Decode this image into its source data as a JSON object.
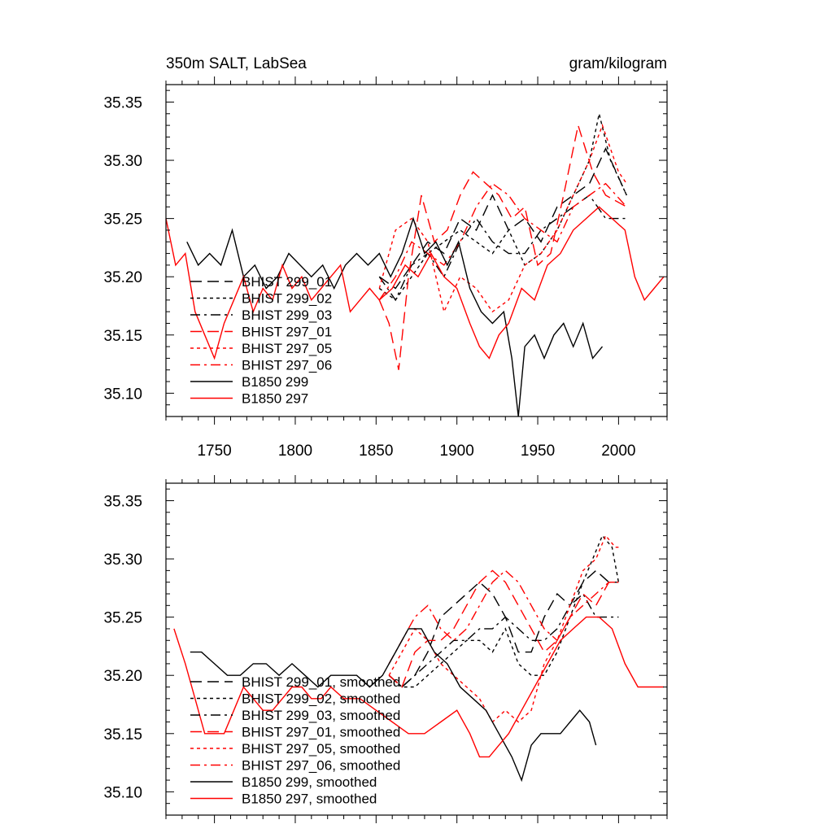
{
  "chart_data": [
    {
      "type": "line",
      "title": "350m SALT, LabSea",
      "units": "gram/kilogram",
      "xlim": [
        1720,
        2030
      ],
      "ylim": [
        35.08,
        35.365
      ],
      "x_ticks": [
        1750,
        1800,
        1850,
        1900,
        1950,
        2000
      ],
      "y_ticks": [
        35.35,
        35.3,
        35.25,
        35.2,
        35.15,
        35.1
      ],
      "y_tick_labels": [
        "35.35",
        "35.30",
        "35.25",
        "35.20",
        "35.15",
        "35.10"
      ],
      "legend_position": "lower-left",
      "series": [
        {
          "name": "BHIST 299_01",
          "color": "#000000",
          "dash": "long",
          "x": [
            1852,
            1862,
            1872,
            1882,
            1892,
            1902,
            1912,
            1922,
            1932,
            1942,
            1952,
            1962,
            1972,
            1982,
            1992,
            2005
          ],
          "y": [
            35.2,
            35.19,
            35.21,
            35.23,
            35.22,
            35.25,
            35.24,
            35.27,
            35.24,
            35.25,
            35.23,
            35.26,
            35.27,
            35.28,
            35.31,
            35.27
          ]
        },
        {
          "name": "BHIST 299_02",
          "color": "#000000",
          "dash": "short",
          "x": [
            1852,
            1862,
            1872,
            1882,
            1892,
            1902,
            1912,
            1922,
            1932,
            1942,
            1952,
            1962,
            1972,
            1982,
            1988,
            1995,
            2005
          ],
          "y": [
            35.19,
            35.18,
            35.2,
            35.22,
            35.23,
            35.24,
            35.23,
            35.22,
            35.24,
            35.21,
            35.22,
            35.24,
            35.27,
            35.3,
            35.34,
            35.3,
            35.27
          ]
        },
        {
          "name": "BHIST 299_03",
          "color": "#000000",
          "dash": "dashdot",
          "x": [
            1852,
            1862,
            1872,
            1882,
            1892,
            1902,
            1912,
            1922,
            1932,
            1942,
            1952,
            1962,
            1972,
            1982,
            1992,
            2005
          ],
          "y": [
            35.2,
            35.18,
            35.21,
            35.22,
            35.2,
            35.23,
            35.25,
            35.23,
            35.22,
            35.22,
            35.24,
            35.25,
            35.26,
            35.27,
            35.25,
            35.25
          ]
        },
        {
          "name": "BHIST 297_01",
          "color": "#ff0000",
          "dash": "long",
          "x": [
            1852,
            1858,
            1864,
            1870,
            1878,
            1886,
            1894,
            1902,
            1910,
            1918,
            1926,
            1934,
            1942,
            1950,
            1958,
            1966,
            1975,
            1984,
            1992,
            2005
          ],
          "y": [
            35.18,
            35.16,
            35.12,
            35.2,
            35.27,
            35.23,
            35.24,
            35.27,
            35.29,
            35.28,
            35.27,
            35.25,
            35.26,
            35.21,
            35.22,
            35.27,
            35.33,
            35.29,
            35.27,
            35.26
          ]
        },
        {
          "name": "BHIST 297_05",
          "color": "#ff0000",
          "dash": "short",
          "x": [
            1852,
            1862,
            1872,
            1882,
            1892,
            1902,
            1912,
            1922,
            1932,
            1942,
            1952,
            1962,
            1972,
            1982,
            1990,
            2000,
            2005
          ],
          "y": [
            35.19,
            35.24,
            35.25,
            35.23,
            35.17,
            35.2,
            35.19,
            35.17,
            35.18,
            35.21,
            35.22,
            35.24,
            35.27,
            35.3,
            35.33,
            35.29,
            35.28
          ]
        },
        {
          "name": "BHIST 297_06",
          "color": "#ff0000",
          "dash": "dashdot",
          "x": [
            1852,
            1862,
            1872,
            1882,
            1892,
            1902,
            1912,
            1922,
            1932,
            1942,
            1952,
            1962,
            1972,
            1982,
            1992,
            2005
          ],
          "y": [
            35.18,
            35.2,
            35.23,
            35.22,
            35.21,
            35.23,
            35.26,
            35.28,
            35.27,
            35.25,
            35.24,
            35.23,
            35.26,
            35.27,
            35.28,
            35.26
          ]
        },
        {
          "name": "B1850 299",
          "color": "#000000",
          "dash": "solid",
          "x": [
            1733,
            1740,
            1747,
            1754,
            1761,
            1768,
            1775,
            1782,
            1789,
            1796,
            1803,
            1810,
            1817,
            1824,
            1831,
            1838,
            1845,
            1852,
            1859,
            1866,
            1873,
            1880,
            1887,
            1894,
            1901,
            1908,
            1915,
            1922,
            1929,
            1934,
            1938,
            1942,
            1948,
            1954,
            1960,
            1966,
            1972,
            1978,
            1984,
            1990
          ],
          "y": [
            35.23,
            35.21,
            35.22,
            35.21,
            35.24,
            35.2,
            35.21,
            35.19,
            35.2,
            35.22,
            35.21,
            35.2,
            35.21,
            35.19,
            35.21,
            35.22,
            35.21,
            35.22,
            35.2,
            35.22,
            35.25,
            35.22,
            35.23,
            35.21,
            35.23,
            35.19,
            35.17,
            35.16,
            35.17,
            35.13,
            35.08,
            35.14,
            35.15,
            35.13,
            35.15,
            35.16,
            35.14,
            35.16,
            35.13,
            35.14
          ]
        },
        {
          "name": "B1850 297",
          "color": "#ff0000",
          "dash": "solid",
          "x": [
            1720,
            1726,
            1732,
            1738,
            1744,
            1750,
            1756,
            1762,
            1768,
            1774,
            1780,
            1786,
            1792,
            1798,
            1804,
            1810,
            1816,
            1822,
            1828,
            1834,
            1840,
            1846,
            1852,
            1860,
            1868,
            1876,
            1884,
            1892,
            1900,
            1908,
            1914,
            1920,
            1926,
            1932,
            1940,
            1948,
            1956,
            1964,
            1972,
            1980,
            1988,
            1996,
            2004,
            2010,
            2016,
            2022,
            2028
          ],
          "y": [
            35.25,
            35.21,
            35.22,
            35.17,
            35.15,
            35.13,
            35.16,
            35.18,
            35.2,
            35.17,
            35.19,
            35.18,
            35.21,
            35.19,
            35.2,
            35.18,
            35.19,
            35.2,
            35.21,
            35.17,
            35.18,
            35.19,
            35.18,
            35.19,
            35.21,
            35.2,
            35.22,
            35.2,
            35.19,
            35.16,
            35.14,
            35.13,
            35.15,
            35.16,
            35.19,
            35.18,
            35.21,
            35.22,
            35.24,
            35.25,
            35.26,
            35.25,
            35.24,
            35.2,
            35.18,
            35.19,
            35.2
          ]
        }
      ]
    },
    {
      "type": "line",
      "xlim": [
        1720,
        2030
      ],
      "ylim": [
        35.08,
        35.365
      ],
      "x_ticks": [
        1750,
        1800,
        1850,
        1900,
        1950,
        2000
      ],
      "y_ticks": [
        35.35,
        35.3,
        35.25,
        35.2,
        35.15,
        35.1
      ],
      "y_tick_labels": [
        "35.35",
        "35.30",
        "35.25",
        "35.20",
        "35.15",
        "35.10"
      ],
      "legend_position": "lower-left",
      "series": [
        {
          "name": "BHIST 299_01, smoothed",
          "color": "#000000",
          "dash": "long",
          "x": [
            1858,
            1866,
            1874,
            1882,
            1890,
            1898,
            1906,
            1914,
            1922,
            1930,
            1938,
            1946,
            1954,
            1962,
            1970,
            1978,
            1986,
            1994,
            2000
          ],
          "y": [
            35.2,
            35.19,
            35.2,
            35.22,
            35.25,
            35.26,
            35.27,
            35.28,
            35.27,
            35.25,
            35.22,
            35.22,
            35.25,
            35.27,
            35.26,
            35.28,
            35.29,
            35.28,
            35.28
          ]
        },
        {
          "name": "BHIST 299_02, smoothed",
          "color": "#000000",
          "dash": "short",
          "x": [
            1858,
            1866,
            1874,
            1882,
            1890,
            1898,
            1906,
            1914,
            1922,
            1930,
            1938,
            1946,
            1954,
            1962,
            1970,
            1978,
            1984,
            1990,
            1996,
            2000
          ],
          "y": [
            35.2,
            35.19,
            35.19,
            35.2,
            35.21,
            35.22,
            35.23,
            35.23,
            35.22,
            35.24,
            35.21,
            35.2,
            35.2,
            35.22,
            35.25,
            35.28,
            35.3,
            35.32,
            35.31,
            35.28
          ]
        },
        {
          "name": "BHIST 299_03, smoothed",
          "color": "#000000",
          "dash": "dashdot",
          "x": [
            1858,
            1866,
            1874,
            1882,
            1890,
            1898,
            1906,
            1914,
            1922,
            1930,
            1938,
            1946,
            1954,
            1962,
            1970,
            1978,
            1986,
            1994,
            2000
          ],
          "y": [
            35.2,
            35.19,
            35.2,
            35.21,
            35.22,
            35.23,
            35.23,
            35.24,
            35.24,
            35.25,
            35.24,
            35.23,
            35.23,
            35.24,
            35.26,
            35.27,
            35.25,
            35.25,
            35.25
          ]
        },
        {
          "name": "BHIST 297_01, smoothed",
          "color": "#ff0000",
          "dash": "long",
          "x": [
            1858,
            1866,
            1874,
            1882,
            1890,
            1898,
            1906,
            1914,
            1922,
            1930,
            1938,
            1946,
            1954,
            1962,
            1970,
            1978,
            1986,
            1994,
            2000
          ],
          "y": [
            35.2,
            35.19,
            35.22,
            35.23,
            35.23,
            35.24,
            35.26,
            35.28,
            35.29,
            35.28,
            35.26,
            35.24,
            35.22,
            35.23,
            35.25,
            35.27,
            35.26,
            35.28,
            35.28
          ]
        },
        {
          "name": "BHIST 297_05, smoothed",
          "color": "#ff0000",
          "dash": "short",
          "x": [
            1858,
            1866,
            1874,
            1882,
            1890,
            1898,
            1906,
            1914,
            1922,
            1930,
            1938,
            1946,
            1954,
            1962,
            1970,
            1978,
            1986,
            1992,
            1998,
            2000
          ],
          "y": [
            35.2,
            35.22,
            35.24,
            35.23,
            35.21,
            35.2,
            35.19,
            35.18,
            35.16,
            35.17,
            35.16,
            35.17,
            35.21,
            35.23,
            35.26,
            35.29,
            35.3,
            35.32,
            35.31,
            35.31
          ]
        },
        {
          "name": "BHIST 297_06, smoothed",
          "color": "#ff0000",
          "dash": "dashdot",
          "x": [
            1858,
            1866,
            1874,
            1882,
            1890,
            1898,
            1906,
            1914,
            1922,
            1930,
            1938,
            1946,
            1954,
            1962,
            1970,
            1978,
            1986,
            1994,
            2000
          ],
          "y": [
            35.21,
            35.23,
            35.25,
            35.26,
            35.24,
            35.23,
            35.24,
            35.26,
            35.28,
            35.29,
            35.28,
            35.26,
            35.24,
            35.23,
            35.25,
            35.26,
            35.27,
            35.28,
            35.28
          ]
        },
        {
          "name": "B1850 299, smoothed",
          "color": "#000000",
          "dash": "solid",
          "x": [
            1735,
            1742,
            1750,
            1758,
            1766,
            1774,
            1782,
            1790,
            1798,
            1806,
            1814,
            1822,
            1830,
            1838,
            1846,
            1854,
            1862,
            1870,
            1878,
            1886,
            1894,
            1902,
            1910,
            1918,
            1926,
            1934,
            1940,
            1946,
            1952,
            1958,
            1964,
            1970,
            1976,
            1982,
            1986
          ],
          "y": [
            35.22,
            35.22,
            35.21,
            35.2,
            35.2,
            35.21,
            35.21,
            35.2,
            35.21,
            35.2,
            35.19,
            35.2,
            35.2,
            35.2,
            35.19,
            35.2,
            35.22,
            35.24,
            35.24,
            35.22,
            35.21,
            35.19,
            35.18,
            35.17,
            35.15,
            35.13,
            35.11,
            35.14,
            35.15,
            35.15,
            35.15,
            35.16,
            35.17,
            35.16,
            35.14
          ]
        },
        {
          "name": "B1850 297, smoothed",
          "color": "#ff0000",
          "dash": "solid",
          "x": [
            1725,
            1732,
            1738,
            1744,
            1750,
            1756,
            1762,
            1768,
            1774,
            1780,
            1786,
            1792,
            1798,
            1804,
            1810,
            1816,
            1822,
            1830,
            1840,
            1850,
            1860,
            1870,
            1880,
            1890,
            1900,
            1908,
            1914,
            1920,
            1926,
            1932,
            1940,
            1948,
            1956,
            1964,
            1972,
            1980,
            1988,
            1996,
            2004,
            2012,
            2020,
            2028
          ],
          "y": [
            35.24,
            35.21,
            35.18,
            35.15,
            35.15,
            35.15,
            35.17,
            35.19,
            35.18,
            35.17,
            35.17,
            35.18,
            35.19,
            35.19,
            35.18,
            35.18,
            35.19,
            35.18,
            35.18,
            35.17,
            35.16,
            35.15,
            35.15,
            35.16,
            35.17,
            35.15,
            35.13,
            35.13,
            35.14,
            35.15,
            35.17,
            35.19,
            35.21,
            35.23,
            35.24,
            35.25,
            35.25,
            35.24,
            35.21,
            35.19,
            35.19,
            35.19
          ]
        }
      ]
    }
  ]
}
